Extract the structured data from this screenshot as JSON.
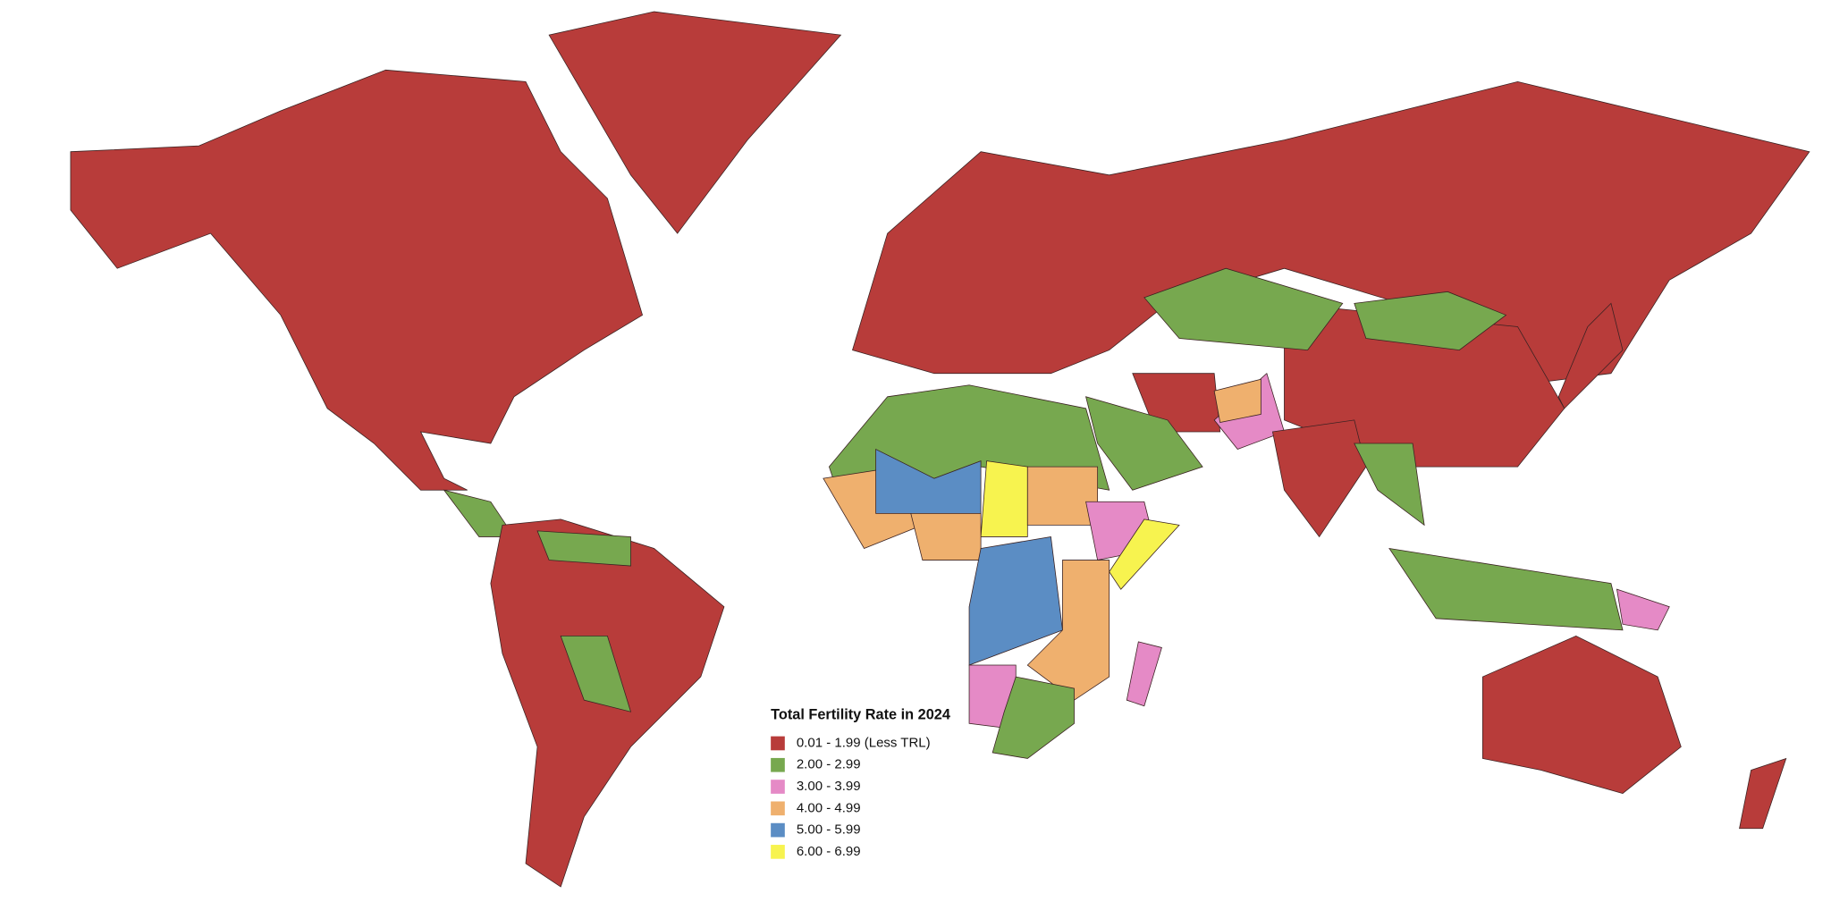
{
  "legend": {
    "title": "Total Fertility Rate in 2024",
    "items": [
      {
        "label": "0.01 - 1.99 (Less TRL)",
        "color": "#b83c3a"
      },
      {
        "label": "2.00 - 2.99",
        "color": "#77a84f"
      },
      {
        "label": "3.00 - 3.99",
        "color": "#e58ac6"
      },
      {
        "label": "4.00 - 4.99",
        "color": "#efb06e"
      },
      {
        "label": "5.00 - 5.99",
        "color": "#5b8dc4"
      },
      {
        "label": "6.00 - 6.99",
        "color": "#f7f34f"
      }
    ]
  }
}
